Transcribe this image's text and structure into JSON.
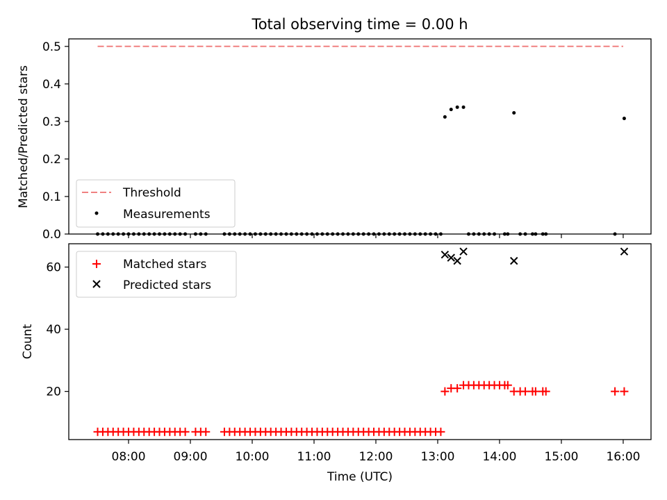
{
  "chart_data": [
    {
      "type": "scatter",
      "title": "Total observing time = 0.00 h",
      "ylabel": "Matched/Predicted stars",
      "xlim": [
        "07:02",
        "16:27"
      ],
      "ylim": [
        0,
        0.52
      ],
      "yticks": [
        "0.0",
        "0.1",
        "0.2",
        "0.3",
        "0.4",
        "0.5"
      ],
      "threshold": {
        "name": "Threshold",
        "value": 0.5,
        "x": [
          "07:30",
          "16:00"
        ],
        "color": "#f08080"
      },
      "legend": {
        "position": "lower-left",
        "entries": [
          "Threshold",
          "Measurements"
        ]
      },
      "series": [
        {
          "name": "Measurements",
          "color": "#000000",
          "points": [
            [
              "07:30",
              0
            ],
            [
              "07:35",
              0
            ],
            [
              "07:40",
              0
            ],
            [
              "07:45",
              0
            ],
            [
              "07:50",
              0
            ],
            [
              "07:55",
              0
            ],
            [
              "08:00",
              0
            ],
            [
              "08:05",
              0
            ],
            [
              "08:10",
              0
            ],
            [
              "08:15",
              0
            ],
            [
              "08:20",
              0
            ],
            [
              "08:25",
              0
            ],
            [
              "08:30",
              0
            ],
            [
              "08:35",
              0
            ],
            [
              "08:40",
              0
            ],
            [
              "08:45",
              0
            ],
            [
              "08:50",
              0
            ],
            [
              "08:55",
              0
            ],
            [
              "09:05",
              0
            ],
            [
              "09:10",
              0
            ],
            [
              "09:15",
              0
            ],
            [
              "09:33",
              0
            ],
            [
              "09:38",
              0
            ],
            [
              "09:43",
              0
            ],
            [
              "09:48",
              0
            ],
            [
              "09:53",
              0
            ],
            [
              "09:58",
              0
            ],
            [
              "10:03",
              0
            ],
            [
              "10:08",
              0
            ],
            [
              "10:13",
              0
            ],
            [
              "10:18",
              0
            ],
            [
              "10:23",
              0
            ],
            [
              "10:28",
              0
            ],
            [
              "10:33",
              0
            ],
            [
              "10:38",
              0
            ],
            [
              "10:43",
              0
            ],
            [
              "10:48",
              0
            ],
            [
              "10:53",
              0
            ],
            [
              "10:58",
              0
            ],
            [
              "11:03",
              0
            ],
            [
              "11:08",
              0
            ],
            [
              "11:13",
              0
            ],
            [
              "11:18",
              0
            ],
            [
              "11:23",
              0
            ],
            [
              "11:28",
              0
            ],
            [
              "11:33",
              0
            ],
            [
              "11:38",
              0
            ],
            [
              "11:43",
              0
            ],
            [
              "11:48",
              0
            ],
            [
              "11:53",
              0
            ],
            [
              "11:58",
              0
            ],
            [
              "12:03",
              0
            ],
            [
              "12:08",
              0
            ],
            [
              "12:13",
              0
            ],
            [
              "12:18",
              0
            ],
            [
              "12:23",
              0
            ],
            [
              "12:28",
              0
            ],
            [
              "12:33",
              0
            ],
            [
              "12:38",
              0
            ],
            [
              "12:43",
              0
            ],
            [
              "12:48",
              0
            ],
            [
              "12:53",
              0
            ],
            [
              "12:58",
              0
            ],
            [
              "13:03",
              0
            ],
            [
              "13:07",
              0.312
            ],
            [
              "13:13",
              0.332
            ],
            [
              "13:19",
              0.338
            ],
            [
              "13:25",
              0.338
            ],
            [
              "13:30",
              0
            ],
            [
              "13:35",
              0
            ],
            [
              "13:40",
              0
            ],
            [
              "13:45",
              0
            ],
            [
              "13:50",
              0
            ],
            [
              "13:55",
              0
            ],
            [
              "14:05",
              0
            ],
            [
              "14:08",
              0
            ],
            [
              "14:20",
              0
            ],
            [
              "14:25",
              0
            ],
            [
              "14:32",
              0
            ],
            [
              "14:35",
              0
            ],
            [
              "14:42",
              0
            ],
            [
              "14:45",
              0
            ],
            [
              "14:14",
              0.323
            ],
            [
              "15:52",
              0
            ],
            [
              "16:01",
              0.308
            ]
          ]
        }
      ]
    },
    {
      "type": "scatter",
      "xlabel": "Time (UTC)",
      "ylabel": "Count",
      "xlim": [
        "07:02",
        "16:27"
      ],
      "ylim": [
        4.5,
        67.5
      ],
      "yticks": [
        "20",
        "40",
        "60"
      ],
      "xticks": [
        "08:00",
        "09:00",
        "10:00",
        "11:00",
        "12:00",
        "13:00",
        "14:00",
        "15:00",
        "16:00"
      ],
      "legend": {
        "position": "upper-left",
        "entries": [
          "Matched stars",
          "Predicted stars"
        ]
      },
      "series": [
        {
          "name": "Matched stars",
          "marker": "plus",
          "color": "#ff0000",
          "points": [
            [
              "07:30",
              7
            ],
            [
              "07:35",
              7
            ],
            [
              "07:40",
              7
            ],
            [
              "07:45",
              7
            ],
            [
              "07:50",
              7
            ],
            [
              "07:55",
              7
            ],
            [
              "08:00",
              7
            ],
            [
              "08:05",
              7
            ],
            [
              "08:10",
              7
            ],
            [
              "08:15",
              7
            ],
            [
              "08:20",
              7
            ],
            [
              "08:25",
              7
            ],
            [
              "08:30",
              7
            ],
            [
              "08:35",
              7
            ],
            [
              "08:40",
              7
            ],
            [
              "08:45",
              7
            ],
            [
              "08:50",
              7
            ],
            [
              "08:55",
              7
            ],
            [
              "09:05",
              7
            ],
            [
              "09:10",
              7
            ],
            [
              "09:15",
              7
            ],
            [
              "09:33",
              7
            ],
            [
              "09:38",
              7
            ],
            [
              "09:43",
              7
            ],
            [
              "09:48",
              7
            ],
            [
              "09:53",
              7
            ],
            [
              "09:58",
              7
            ],
            [
              "10:03",
              7
            ],
            [
              "10:08",
              7
            ],
            [
              "10:13",
              7
            ],
            [
              "10:18",
              7
            ],
            [
              "10:23",
              7
            ],
            [
              "10:28",
              7
            ],
            [
              "10:33",
              7
            ],
            [
              "10:38",
              7
            ],
            [
              "10:43",
              7
            ],
            [
              "10:48",
              7
            ],
            [
              "10:53",
              7
            ],
            [
              "10:58",
              7
            ],
            [
              "11:03",
              7
            ],
            [
              "11:08",
              7
            ],
            [
              "11:13",
              7
            ],
            [
              "11:18",
              7
            ],
            [
              "11:23",
              7
            ],
            [
              "11:28",
              7
            ],
            [
              "11:33",
              7
            ],
            [
              "11:38",
              7
            ],
            [
              "11:43",
              7
            ],
            [
              "11:48",
              7
            ],
            [
              "11:53",
              7
            ],
            [
              "11:58",
              7
            ],
            [
              "12:03",
              7
            ],
            [
              "12:08",
              7
            ],
            [
              "12:13",
              7
            ],
            [
              "12:18",
              7
            ],
            [
              "12:23",
              7
            ],
            [
              "12:28",
              7
            ],
            [
              "12:33",
              7
            ],
            [
              "12:38",
              7
            ],
            [
              "12:43",
              7
            ],
            [
              "12:48",
              7
            ],
            [
              "12:53",
              7
            ],
            [
              "12:58",
              7
            ],
            [
              "13:03",
              7
            ],
            [
              "13:07",
              20
            ],
            [
              "13:13",
              21
            ],
            [
              "13:19",
              21
            ],
            [
              "13:25",
              22
            ],
            [
              "13:30",
              22
            ],
            [
              "13:35",
              22
            ],
            [
              "13:40",
              22
            ],
            [
              "13:45",
              22
            ],
            [
              "13:50",
              22
            ],
            [
              "13:55",
              22
            ],
            [
              "14:00",
              22
            ],
            [
              "14:05",
              22
            ],
            [
              "14:08",
              22
            ],
            [
              "14:14",
              20
            ],
            [
              "14:20",
              20
            ],
            [
              "14:25",
              20
            ],
            [
              "14:32",
              20
            ],
            [
              "14:35",
              20
            ],
            [
              "14:42",
              20
            ],
            [
              "14:45",
              20
            ],
            [
              "15:52",
              20
            ],
            [
              "16:01",
              20
            ]
          ]
        },
        {
          "name": "Predicted stars",
          "marker": "x",
          "color": "#000000",
          "points": [
            [
              "13:07",
              64
            ],
            [
              "13:13",
              63
            ],
            [
              "13:19",
              62
            ],
            [
              "13:25",
              65
            ],
            [
              "14:14",
              62
            ],
            [
              "16:01",
              65
            ]
          ]
        }
      ]
    }
  ]
}
